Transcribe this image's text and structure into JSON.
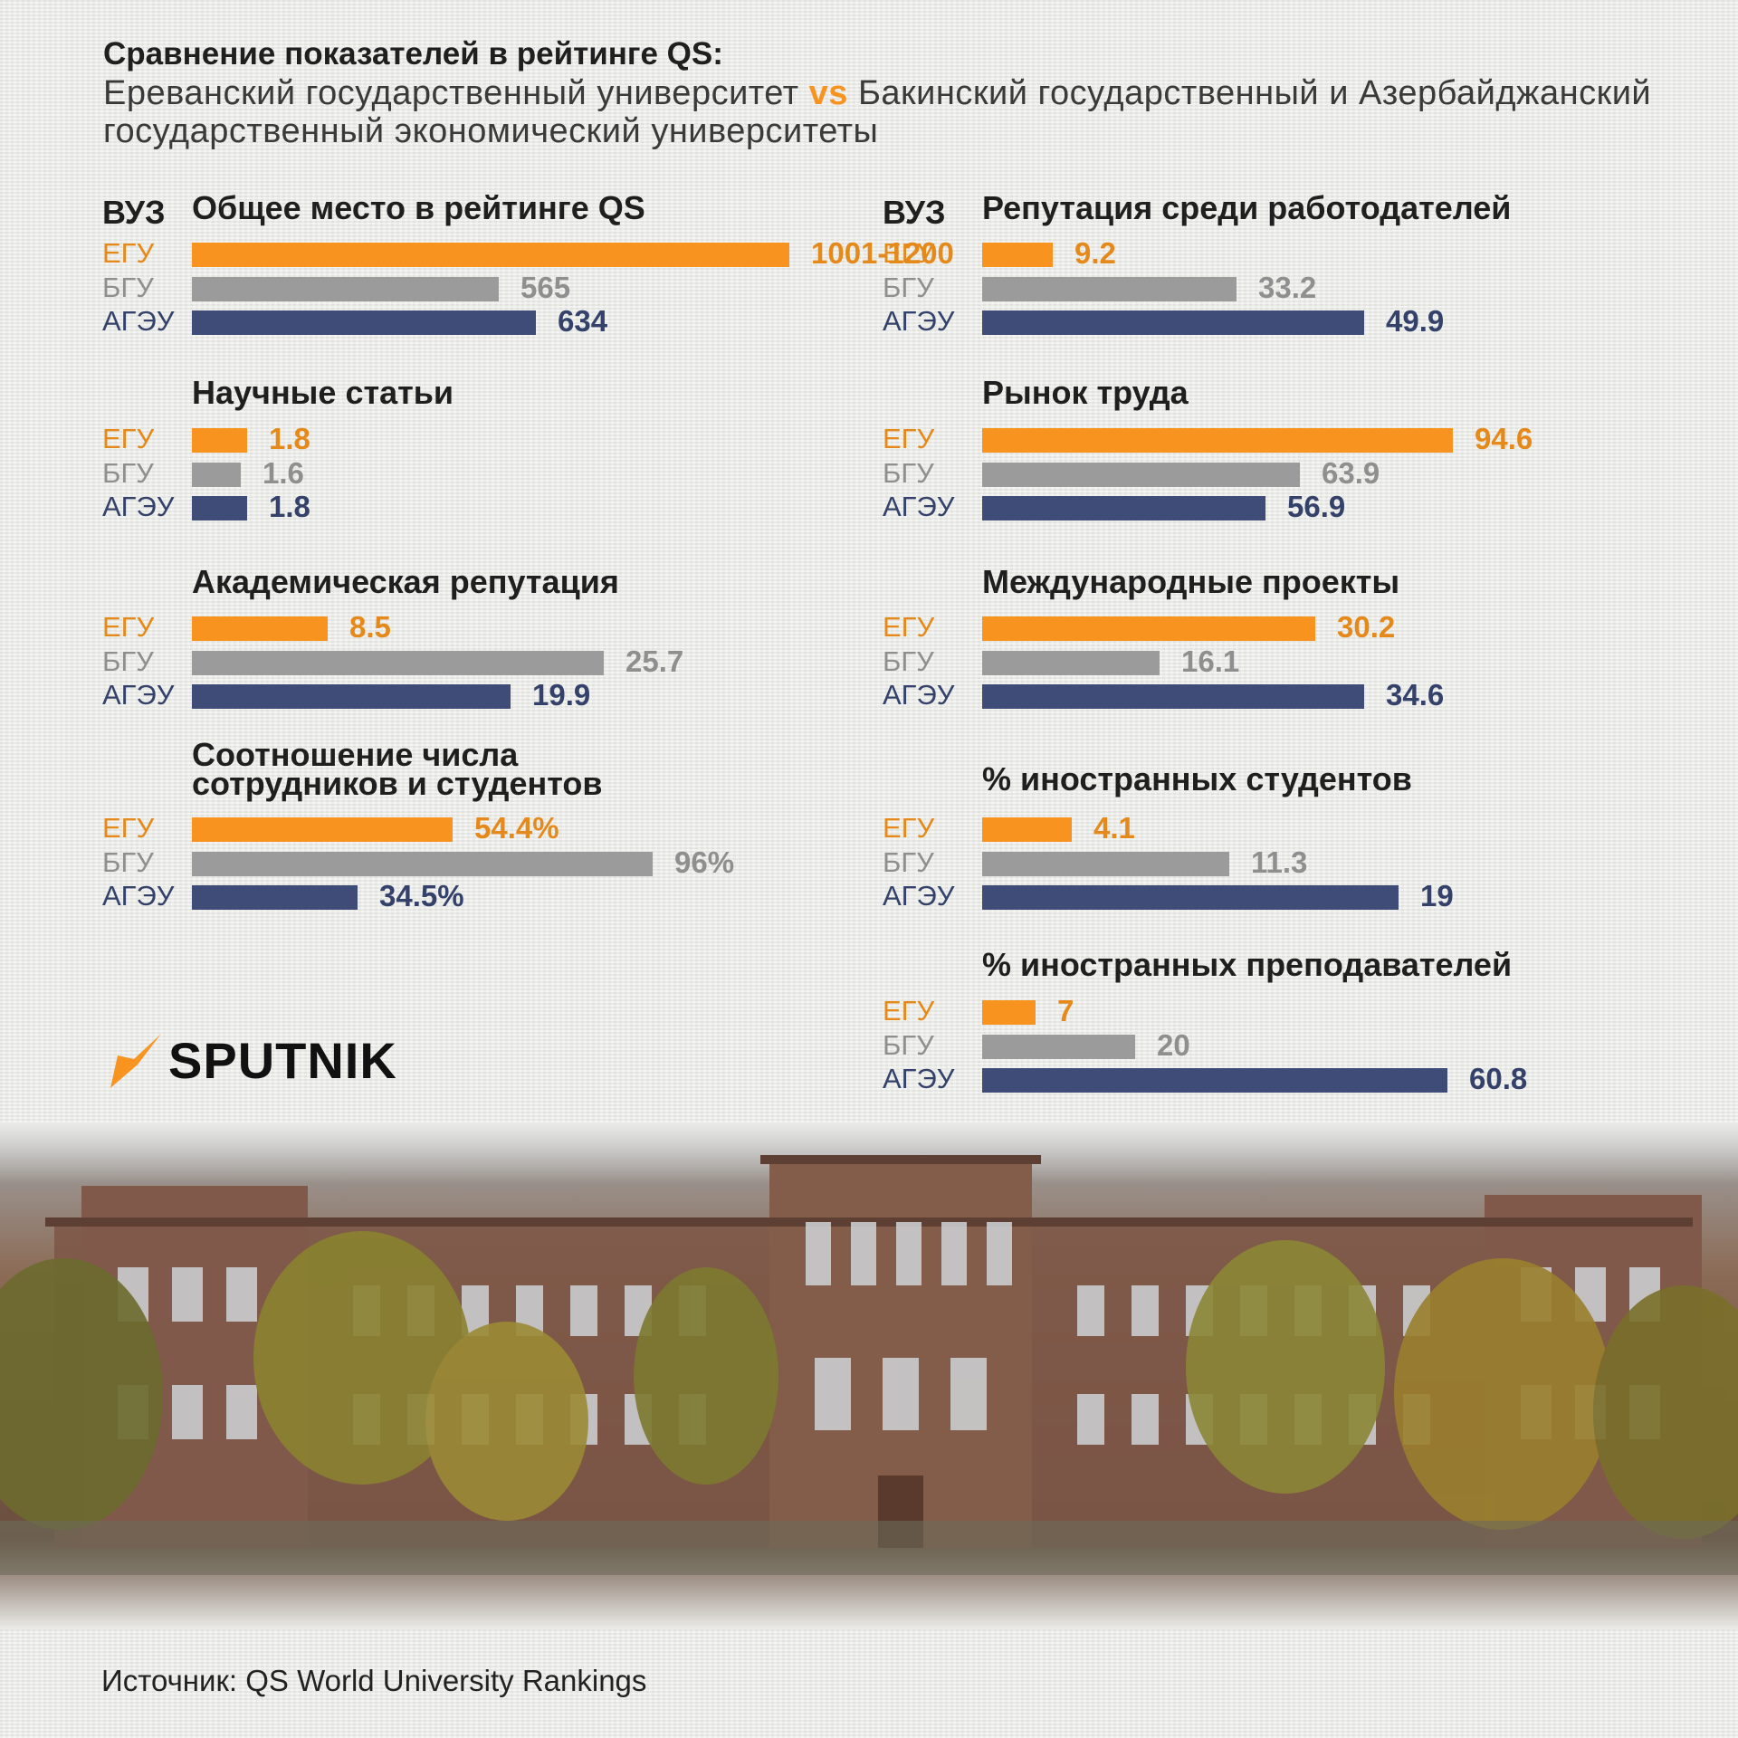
{
  "header": {
    "title": "Сравнение показателей в рейтинге QS:",
    "subtitle_part1": "Ереванский государственный университет",
    "vs": "vs",
    "subtitle_part2": "Бакинский государственный и Азербайджанский государственный экономический университеты"
  },
  "column_header": "ВУЗ",
  "labels": [
    "ЕГУ",
    "БГУ",
    "АГЭУ"
  ],
  "colors": {
    "egu": "#f7931e",
    "bgu": "#9b9b9b",
    "ageu": "#3f4c77"
  },
  "chart_data": [
    {
      "type": "bar",
      "title": "Общее место в рейтинге QS",
      "categories": [
        "ЕГУ",
        "БГУ",
        "АГЭУ"
      ],
      "values": [
        1100,
        565,
        634
      ],
      "value_labels": [
        "1001-1200",
        "565",
        "634"
      ]
    },
    {
      "type": "bar",
      "title": "Научные статьи",
      "categories": [
        "ЕГУ",
        "БГУ",
        "АГЭУ"
      ],
      "values": [
        1.8,
        1.6,
        1.8
      ],
      "value_labels": [
        "1.8",
        "1.6",
        "1.8"
      ]
    },
    {
      "type": "bar",
      "title": "Академическая репутация",
      "categories": [
        "ЕГУ",
        "БГУ",
        "АГЭУ"
      ],
      "values": [
        8.5,
        25.7,
        19.9
      ],
      "value_labels": [
        "8.5",
        "25.7",
        "19.9"
      ]
    },
    {
      "type": "bar",
      "title_lines": [
        "Соотношение числа",
        "сотрудников и студентов"
      ],
      "categories": [
        "ЕГУ",
        "БГУ",
        "АГЭУ"
      ],
      "values": [
        54.4,
        96,
        34.5
      ],
      "value_labels": [
        "54.4%",
        "96%",
        "34.5%"
      ]
    },
    {
      "type": "bar",
      "title": "Репутация среди работодателей",
      "categories": [
        "ЕГУ",
        "БГУ",
        "АГЭУ"
      ],
      "values": [
        9.2,
        33.2,
        49.9
      ],
      "value_labels": [
        "9.2",
        "33.2",
        "49.9"
      ]
    },
    {
      "type": "bar",
      "title": "Рынок труда",
      "categories": [
        "ЕГУ",
        "БГУ",
        "АГЭУ"
      ],
      "values": [
        94.6,
        63.9,
        56.9
      ],
      "value_labels": [
        "94.6",
        "63.9",
        "56.9"
      ]
    },
    {
      "type": "bar",
      "title": "Международные проекты",
      "categories": [
        "ЕГУ",
        "БГУ",
        "АГЭУ"
      ],
      "values": [
        30.2,
        16.1,
        34.6
      ],
      "value_labels": [
        "30.2",
        "16.1",
        "34.6"
      ]
    },
    {
      "type": "bar",
      "title": "% иностранных студентов",
      "categories": [
        "ЕГУ",
        "БГУ",
        "АГЭУ"
      ],
      "values": [
        4.1,
        11.3,
        19
      ],
      "value_labels": [
        "4.1",
        "11.3",
        "19"
      ]
    },
    {
      "type": "bar",
      "title": "% иностранных преподавателей",
      "categories": [
        "ЕГУ",
        "БГУ",
        "АГЭУ"
      ],
      "values": [
        7,
        20,
        60.8
      ],
      "value_labels": [
        "7",
        "20",
        "60.8"
      ]
    }
  ],
  "logo": {
    "wordmark": "SPUTNIK"
  },
  "source": "Источник: QS World University Rankings"
}
